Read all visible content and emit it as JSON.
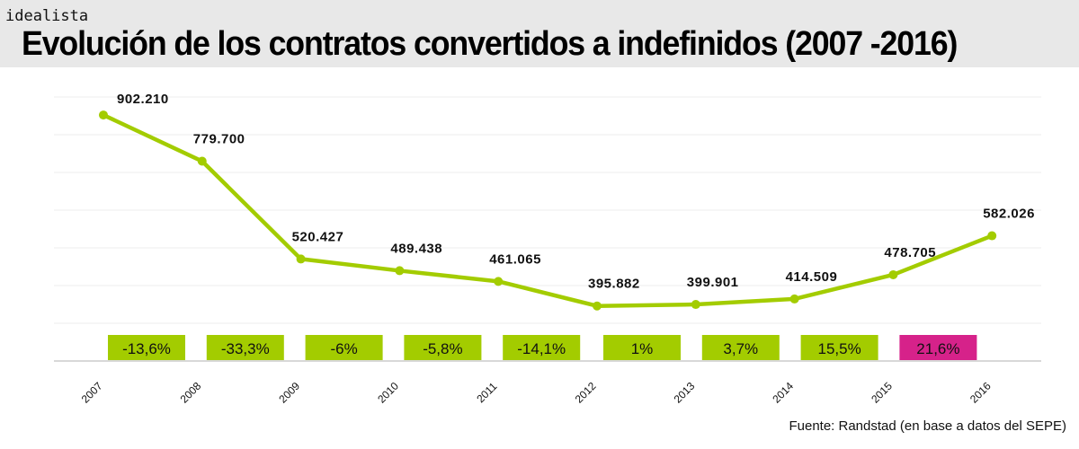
{
  "brand": "idealista",
  "title": "Evolución de los contratos convertidos a indefinidos (2007 -2016)",
  "source": "Fuente: Randstad (en base a datos del SEPE)",
  "chart_data": {
    "type": "line",
    "title": "Evolución de los contratos convertidos a indefinidos (2007 -2016)",
    "categories": [
      "2007",
      "2008",
      "2009",
      "2010",
      "2011",
      "2012",
      "2013",
      "2014",
      "2015",
      "2016"
    ],
    "values": [
      902210,
      779700,
      520427,
      489438,
      461065,
      395882,
      399901,
      414509,
      478705,
      582026
    ],
    "value_labels": [
      "902.210",
      "779.700",
      "520.427",
      "489.438",
      "461.065",
      "395.882",
      "399.901",
      "414.509",
      "478.705",
      "582.026"
    ],
    "changes": [
      "-13,6%",
      "-33,3%",
      "-6%",
      "-5,8%",
      "-14,1%",
      "1%",
      "3,7%",
      "15,5%",
      "21,6%"
    ],
    "ylim": [
      250000,
      950000
    ],
    "grid": true,
    "colors": {
      "line": "#a3cc00",
      "box": "#a3cc00",
      "highlight": "#d6228a"
    }
  }
}
